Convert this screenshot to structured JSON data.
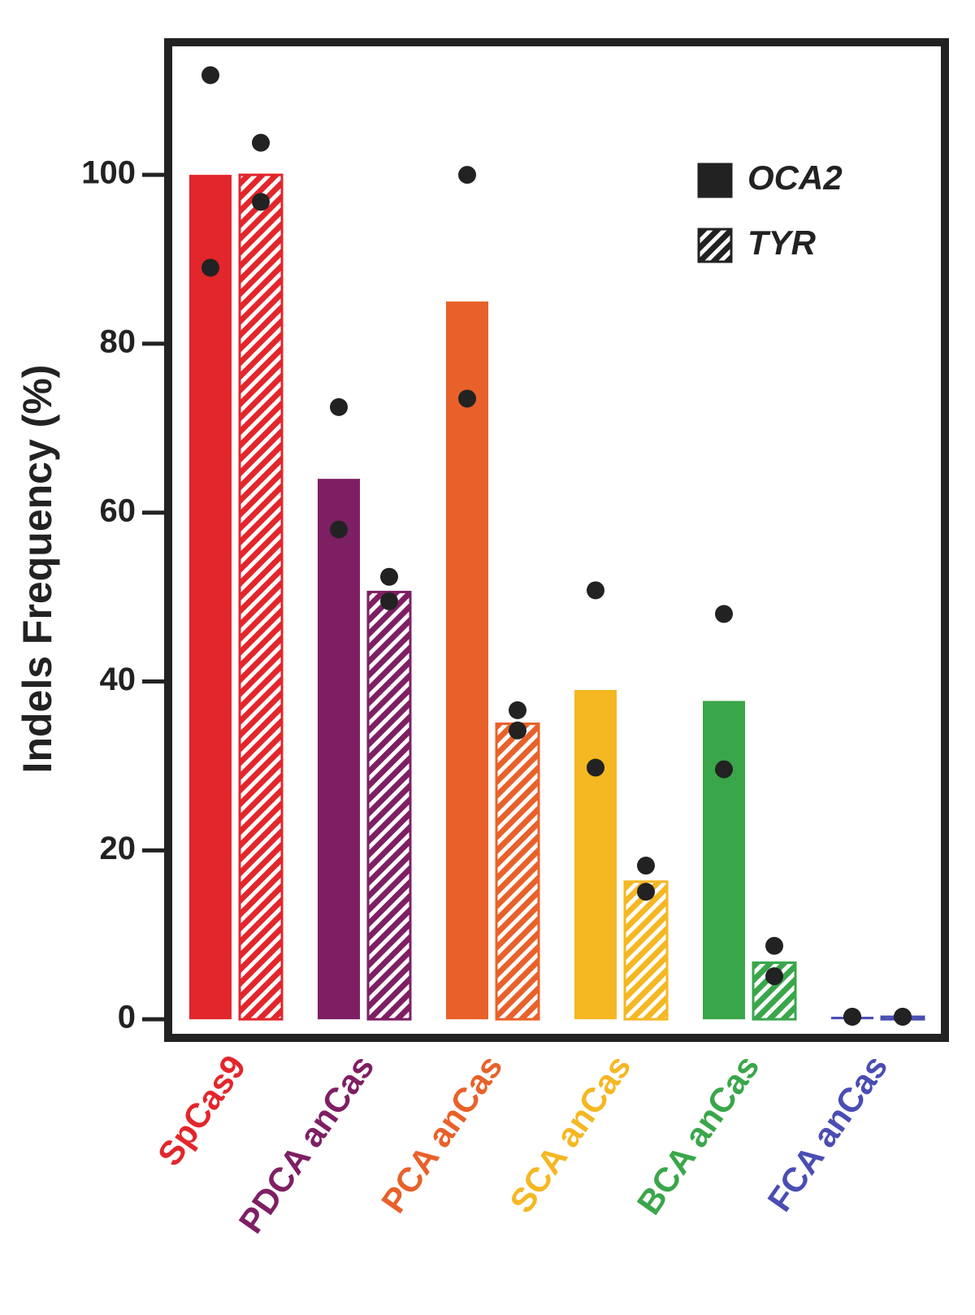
{
  "chart_data": {
    "type": "bar",
    "y_label": "Indels Frequency (%)",
    "categories": [
      "SpCas9",
      "PDCA anCas",
      "PCA anCas",
      "SCA anCas",
      "BCA anCas",
      "FCA anCas"
    ],
    "colors": [
      "#e3262b",
      "#7e1f64",
      "#e9612a",
      "#f5b722",
      "#3aa64a",
      "#4a4db3"
    ],
    "series": [
      {
        "name": "OCA2",
        "color": "#222222",
        "pattern": "solid",
        "values": [
          100,
          64,
          85,
          39,
          37.7,
          0.3
        ],
        "replicates": [
          [
            111.8,
            89
          ],
          [
            72.5,
            58
          ],
          [
            100,
            73.5
          ],
          [
            50.8,
            29.8
          ],
          [
            48,
            29.6
          ],
          [
            0.3,
            0.3
          ]
        ]
      },
      {
        "name": "TYR",
        "color": "#222222",
        "pattern": "hatched",
        "values": [
          100,
          50.6,
          35,
          16.3,
          6.7,
          0.3
        ],
        "replicates": [
          [
            103.8,
            96.8
          ],
          [
            52.4,
            49.5
          ],
          [
            36.6,
            34.2
          ],
          [
            18.2,
            15.1
          ],
          [
            8.7,
            5.1
          ],
          [
            0.3,
            0.3
          ]
        ]
      }
    ],
    "ylim": [
      -2.2,
      115.7
    ],
    "yticks": [
      0,
      20,
      40,
      60,
      80,
      100
    ],
    "grid": false,
    "legend": "upper right"
  }
}
